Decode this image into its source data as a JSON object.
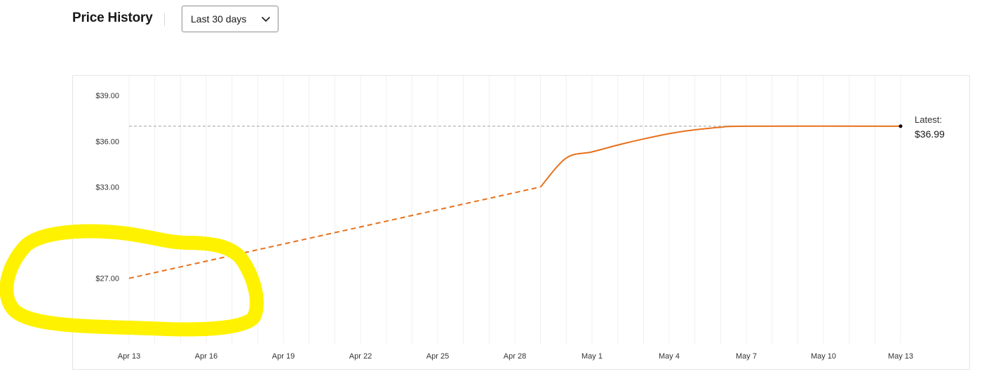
{
  "header": {
    "title": "Price History",
    "range_selected": "Last 30 days"
  },
  "chart_data": {
    "type": "line",
    "title": "Price History",
    "x_axis_type": "date",
    "x_ticks": [
      "Apr 13",
      "Apr 16",
      "Apr 19",
      "Apr 22",
      "Apr 25",
      "Apr 28",
      "May 1",
      "May 4",
      "May 7",
      "May 10",
      "May 13"
    ],
    "y_ticks": [
      "$39.00",
      "$36.00",
      "$33.00",
      "$30.00",
      "$27.00",
      "$24.00"
    ],
    "ylim": [
      22.7,
      40.3
    ],
    "xlim": [
      "Apr 13",
      "May 13"
    ],
    "grid": true,
    "series": [
      {
        "segment": "estimated",
        "style": "dashed",
        "color": "#e8701a",
        "points": [
          {
            "x": "Apr 13",
            "y": 27.0
          },
          {
            "x": "Apr 29",
            "y": 33.0
          }
        ]
      },
      {
        "segment": "observed",
        "style": "solid",
        "color": "#e8701a",
        "points": [
          {
            "x": "Apr 29",
            "y": 33.0
          },
          {
            "x": "Apr 30",
            "y": 34.9
          },
          {
            "x": "May 1",
            "y": 35.3
          },
          {
            "x": "May 2",
            "y": 35.75
          },
          {
            "x": "May 3",
            "y": 36.15
          },
          {
            "x": "May 4",
            "y": 36.5
          },
          {
            "x": "May 5",
            "y": 36.75
          },
          {
            "x": "May 6",
            "y": 36.92
          },
          {
            "x": "May 7",
            "y": 36.99
          },
          {
            "x": "May 13",
            "y": 36.99
          }
        ]
      }
    ],
    "reference_line": {
      "y": 36.99,
      "style": "dashed",
      "color": "#9e9e9e"
    },
    "annotation": {
      "label": "Latest:",
      "value": "$36.99",
      "x": "May 13",
      "y": 36.99
    }
  },
  "overlay": {
    "highlight_color": "#fff200"
  }
}
